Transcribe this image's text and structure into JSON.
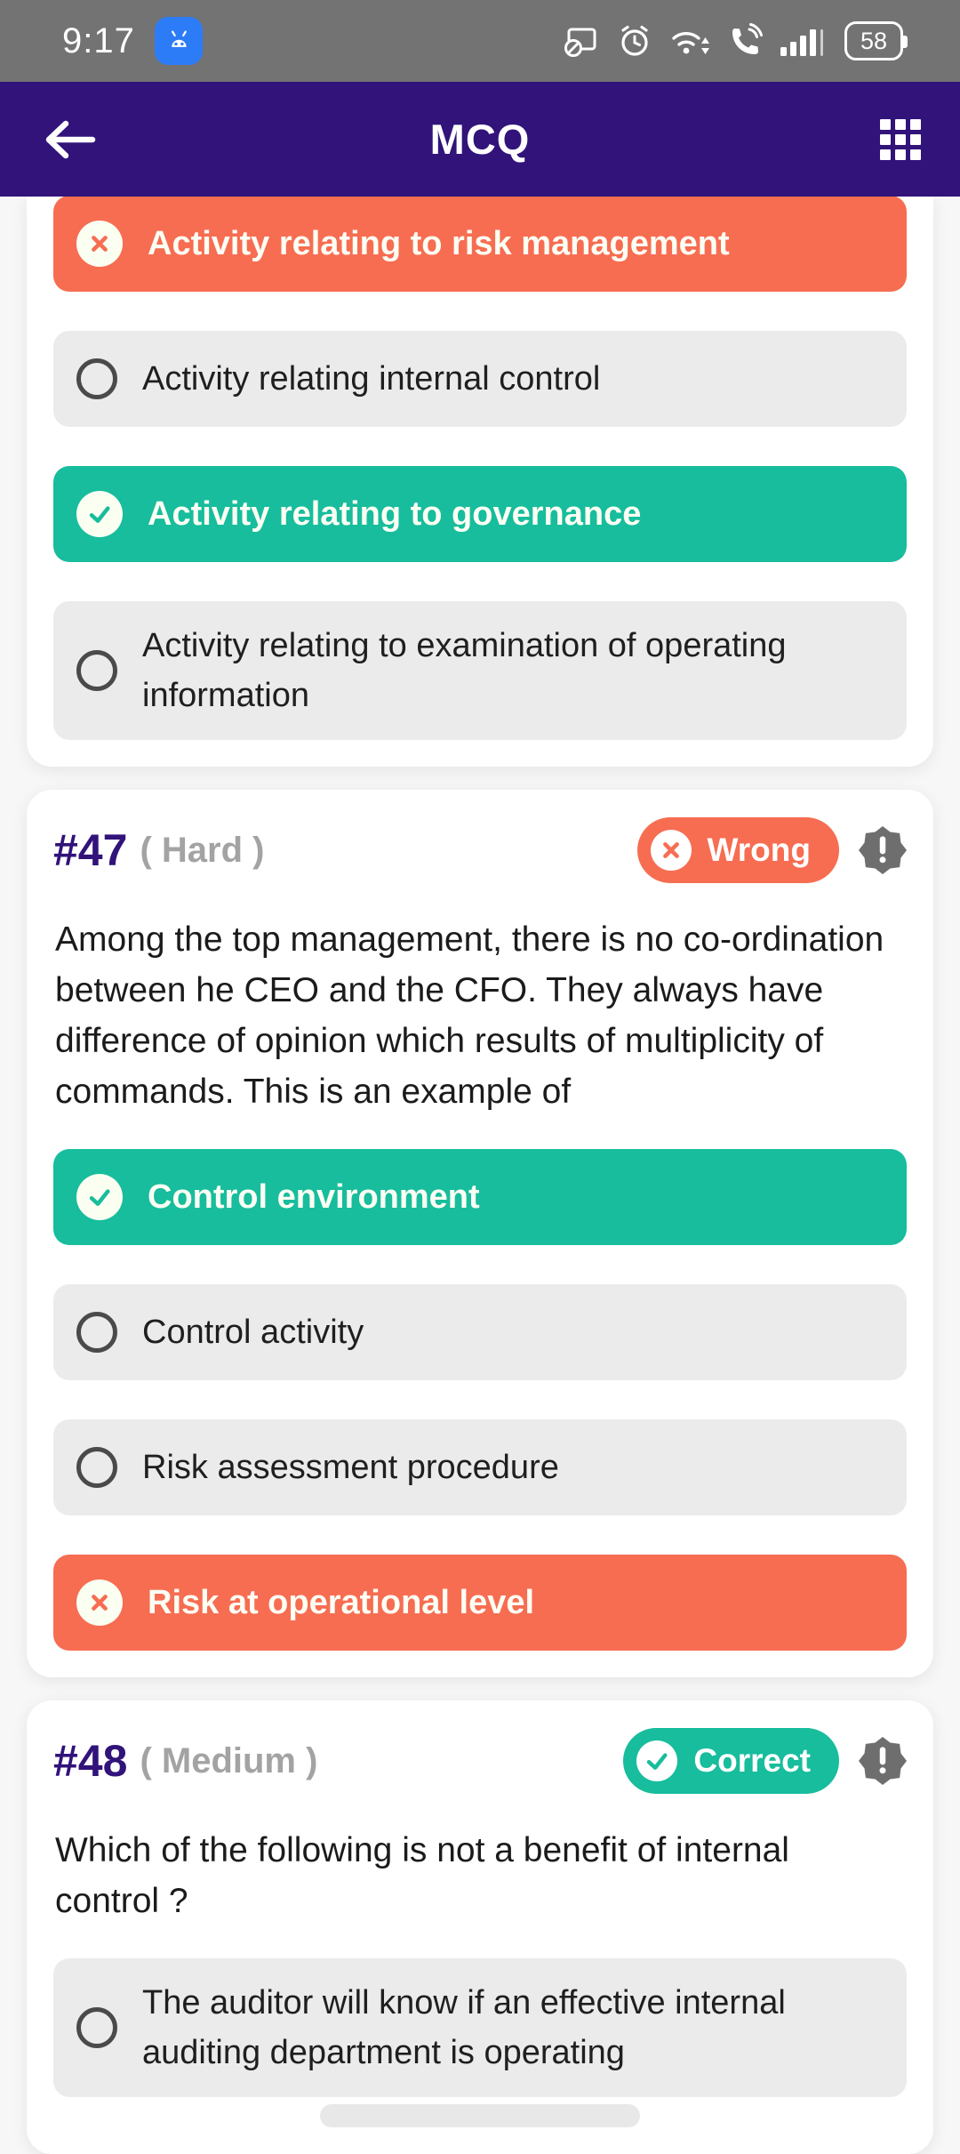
{
  "status_bar": {
    "time": "9:17",
    "battery_percent": "58",
    "app_icon": "android-messages-icon",
    "right_icons": [
      "screen-cast-blocked-icon",
      "alarm-icon",
      "wifi-updown-icon",
      "wifi-calling-icon",
      "signal-bars-icon",
      "battery-icon"
    ]
  },
  "header": {
    "title": "MCQ",
    "left_icon": "back-arrow-icon",
    "right_icon": "grid-menu-icon"
  },
  "colors": {
    "header_purple": "#31137A",
    "correct_green": "#17BD9C",
    "wrong_orange": "#F76D52",
    "neutral_option_gray": "#EBEBEB",
    "status_bar_gray": "#737373",
    "page_background": "#F7F7F7"
  },
  "cards": [
    {
      "clipped_top": true,
      "options": [
        {
          "text": "Activity relating to risk management",
          "state": "wrong"
        },
        {
          "text": "Activity relating internal control",
          "state": "neutral"
        },
        {
          "text": "Activity relating to governance",
          "state": "correct"
        },
        {
          "text": "Activity relating to examination of operating information",
          "state": "neutral"
        }
      ]
    },
    {
      "number": "#47",
      "difficulty": "( Hard )",
      "result": {
        "label": "Wrong",
        "state": "wrong",
        "icon": "x-circle-icon"
      },
      "report_icon": "report-exclamation-seal-icon",
      "question": "Among the top management, there is no co-ordination between he CEO and the CFO. They always have difference of opinion which results of multiplicity of commands. This is an example of",
      "options": [
        {
          "text": "Control environment",
          "state": "correct"
        },
        {
          "text": "Control activity",
          "state": "neutral"
        },
        {
          "text": "Risk assessment procedure",
          "state": "neutral"
        },
        {
          "text": "Risk at operational level",
          "state": "wrong"
        }
      ]
    },
    {
      "number": "#48",
      "difficulty": "( Medium )",
      "result": {
        "label": "Correct",
        "state": "correct",
        "icon": "check-circle-icon"
      },
      "report_icon": "report-exclamation-seal-icon",
      "question": "Which of the following is not a benefit of internal control ?",
      "options": [
        {
          "text": "The auditor will know if an effective internal auditing department is operating",
          "state": "neutral"
        }
      ],
      "partial_next_element": true
    }
  ]
}
